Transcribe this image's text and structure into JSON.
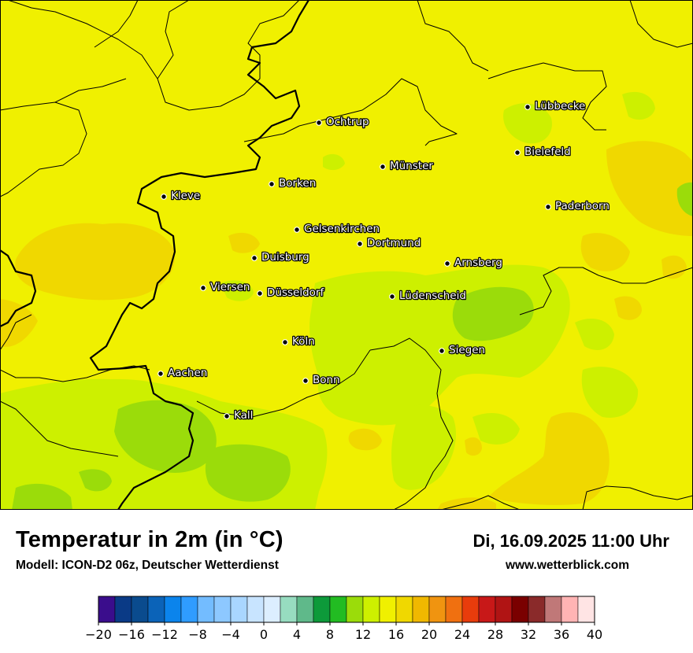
{
  "title": "Temperatur in 2m (in °C)",
  "model": "Modell: ICON-D2 06z, Deutscher Wetterdienst",
  "datetime": "Di, 16.09.2025 11:00 Uhr",
  "website": "www.wetterblick.com",
  "cities": [
    {
      "name": "Lübbecke"
    },
    {
      "name": "Ochtrup"
    },
    {
      "name": "Bielefeld"
    },
    {
      "name": "Münster"
    },
    {
      "name": "Borken"
    },
    {
      "name": "Kleve"
    },
    {
      "name": "Paderborn"
    },
    {
      "name": "Gelsenkirchen"
    },
    {
      "name": "Dortmund"
    },
    {
      "name": "Duisburg"
    },
    {
      "name": "Arnsberg"
    },
    {
      "name": "Viersen"
    },
    {
      "name": "Düsseldorf"
    },
    {
      "name": "Lüdenscheid"
    },
    {
      "name": "Köln"
    },
    {
      "name": "Siegen"
    },
    {
      "name": "Aachen"
    },
    {
      "name": "Bonn"
    },
    {
      "name": "Kall"
    }
  ],
  "legend": {
    "tick_labels": [
      "−20",
      "−16",
      "−12",
      "−8",
      "−4",
      "0",
      "4",
      "8",
      "12",
      "16",
      "20",
      "24",
      "28",
      "32",
      "36",
      "40"
    ],
    "colors": [
      "#3a0d8c",
      "#0a3a86",
      "#0a4b8e",
      "#0b63b8",
      "#0b84ec",
      "#2f9cff",
      "#73bcff",
      "#8dc8ff",
      "#a9d6ff",
      "#c8e4ff",
      "#dceeff",
      "#97dcc0",
      "#5fb98a",
      "#0d9a3a",
      "#22bc22",
      "#9bdc0a",
      "#cdf000",
      "#f0f000",
      "#f0d800",
      "#f0b800",
      "#f09410",
      "#f07010",
      "#e83c0c",
      "#c81818",
      "#b01414",
      "#7a0000",
      "#8a2a2a",
      "#c07878",
      "#ffb4b4",
      "#ffe4e4"
    ]
  },
  "map_colors": {
    "t16_18": "#f0f000",
    "t14_16": "#cdf000",
    "t12_14": "#9bdc0a",
    "t18_20": "#f0d800"
  }
}
